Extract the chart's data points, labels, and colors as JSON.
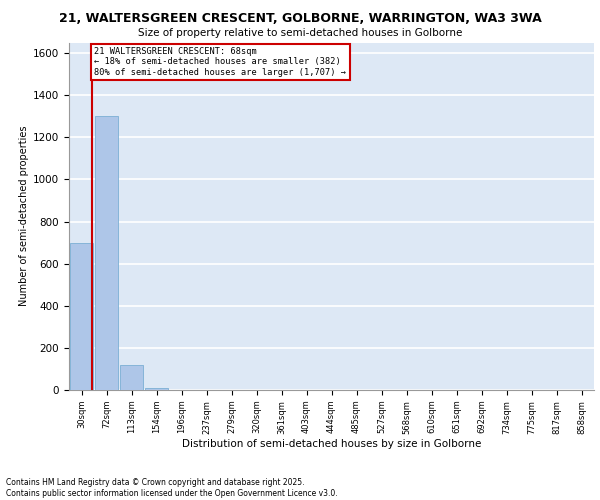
{
  "title": "21, WALTERSGREEN CRESCENT, GOLBORNE, WARRINGTON, WA3 3WA",
  "subtitle": "Size of property relative to semi-detached houses in Golborne",
  "xlabel": "Distribution of semi-detached houses by size in Golborne",
  "ylabel": "Number of semi-detached properties",
  "categories": [
    "30sqm",
    "72sqm",
    "113sqm",
    "154sqm",
    "196sqm",
    "237sqm",
    "279sqm",
    "320sqm",
    "361sqm",
    "403sqm",
    "444sqm",
    "485sqm",
    "527sqm",
    "568sqm",
    "610sqm",
    "651sqm",
    "692sqm",
    "734sqm",
    "775sqm",
    "817sqm",
    "858sqm"
  ],
  "values": [
    700,
    1300,
    120,
    10,
    2,
    0,
    0,
    0,
    0,
    0,
    0,
    0,
    0,
    0,
    0,
    0,
    0,
    0,
    0,
    0,
    0
  ],
  "bar_color": "#aec6e8",
  "bar_edge_color": "#7bafd4",
  "property_line_color": "#cc0000",
  "annotation_text": "21 WALTERSGREEN CRESCENT: 68sqm\n← 18% of semi-detached houses are smaller (382)\n80% of semi-detached houses are larger (1,707) →",
  "annotation_box_color": "#cc0000",
  "ylim": [
    0,
    1650
  ],
  "yticks": [
    0,
    200,
    400,
    600,
    800,
    1000,
    1200,
    1400,
    1600
  ],
  "background_color": "#dde8f5",
  "grid_color": "#ffffff",
  "footer_line1": "Contains HM Land Registry data © Crown copyright and database right 2025.",
  "footer_line2": "Contains public sector information licensed under the Open Government Licence v3.0."
}
